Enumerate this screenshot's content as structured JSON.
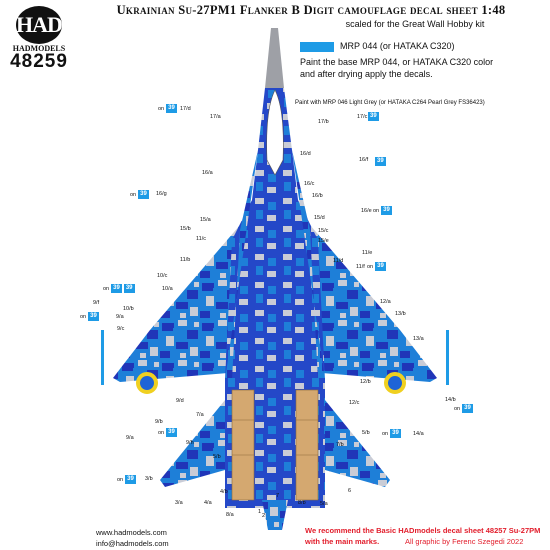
{
  "logo": {
    "mark": "HAD",
    "brand": "HADMODELS",
    "product_number": "48259"
  },
  "header": {
    "title": "Ukrainian Su-27PM1 Flanker B Digit camouflage decal sheet 1:48",
    "subtitle": "scaled for the Great Wall Hobby kit"
  },
  "legend": {
    "swatch_color": "#1e9be6",
    "swatch_label": "MRP 044 (or HATAKA C320)",
    "instruction_line1": "Paint the base MRP 044, or HATAKA C320 color",
    "instruction_line2": "and after drying apply the decals.",
    "grey_instruction": "Paint with MRP 046 Light Grey (or HATAKA C264 Pearl Grey FS36423)"
  },
  "camo_colors": {
    "base": "#1e7fd8",
    "dark": "#2035b8",
    "light": "#c9ccd6",
    "grey": "#9ea0a6",
    "sand": "#d4a870",
    "roundel_yellow": "#f0d020"
  },
  "on_word": "on",
  "on_number": "39",
  "labels_left": [
    "17/d",
    "17/a",
    "16/a",
    "16/g",
    "15/b",
    "11/c",
    "11/b",
    "10/c",
    "10/a",
    "10/b",
    "9/f",
    "9/a",
    "9/c",
    "9/b",
    "9/a",
    "9/d",
    "9/h",
    "7/a",
    "5/b",
    "3/b",
    "3/a",
    "4/a",
    "4/b",
    "8/a",
    "1",
    "2",
    "15/a"
  ],
  "labels_right": [
    "17/b",
    "17/c",
    "16/d",
    "16/f",
    "16/c",
    "16/b",
    "16/e",
    "15/d",
    "15/c",
    "15/e",
    "11/d",
    "11/e",
    "11/f",
    "12/a",
    "13/b",
    "13/a",
    "12/b",
    "12/c",
    "14/b",
    "14/a",
    "5/b",
    "5/a",
    "6",
    "8/b",
    "7/b",
    "7"
  ],
  "footer": {
    "website": "www.hadmodels.com",
    "email": "info@hadmodels.com",
    "recommend_line1": "We recommend the Basic HADmodels decal sheet 48257 Su-27PM",
    "recommend_line2": "with the main marks.",
    "credit": "All graphic by Ferenc Szegedi 2022"
  }
}
